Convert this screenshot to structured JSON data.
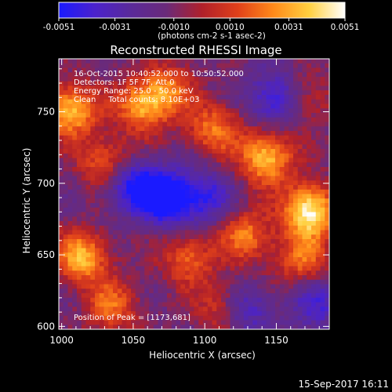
{
  "chart_data": {
    "type": "heatmap",
    "title": "Reconstructed RHESSI Image",
    "xlabel": "Heliocentric X (arcsec)",
    "ylabel": "Heliocentric Y (arcsec)",
    "xlim": [
      998,
      1187
    ],
    "ylim": [
      598,
      787
    ],
    "x_ticks": [
      1000,
      1050,
      1100,
      1150
    ],
    "y_ticks": [
      600,
      650,
      700,
      750
    ],
    "colorbar": {
      "range": [
        -0.0051,
        0.0051
      ],
      "tick_values": [
        -0.0051,
        -0.0031,
        -0.001,
        0.001,
        0.0031,
        0.0051
      ],
      "tick_labels": [
        "-0.0051",
        "-0.0031",
        "-0.0010",
        "0.0010",
        "0.0031",
        "0.0051"
      ],
      "unit_label": "(photons cm-2 s-1 asec-2)",
      "colors": [
        "#1a1aff",
        "#4b22cc",
        "#5a2a9a",
        "#6a2a7a",
        "#b0202a",
        "#e0401a",
        "#ff8a1a",
        "#ffd040",
        "#ffffff"
      ]
    },
    "annotations": [
      "16-Oct-2015 10:40:52.000 to 10:50:52.000",
      "Detectors: 1F 5F 7F, Att 0",
      "Energy Range: 25.0 - 50.0 keV",
      "Clean     Total counts: 8.10E+03",
      "Position of Peak = [1173,681]"
    ],
    "peak": [
      1173,
      681
    ],
    "sources": [
      {
        "x": 1173,
        "y": 681,
        "intensity": 1.0
      },
      {
        "x": 1143,
        "y": 718,
        "intensity": 0.8
      },
      {
        "x": 1006,
        "y": 751,
        "intensity": 0.8
      },
      {
        "x": 1056,
        "y": 754,
        "intensity": 0.65
      },
      {
        "x": 1014,
        "y": 648,
        "intensity": 0.75
      },
      {
        "x": 1106,
        "y": 738,
        "intensity": 0.55
      },
      {
        "x": 1088,
        "y": 648,
        "intensity": 0.5
      },
      {
        "x": 1129,
        "y": 663,
        "intensity": 0.55
      },
      {
        "x": 1035,
        "y": 614,
        "intensity": 0.5
      },
      {
        "x": 1074,
        "y": 765,
        "intensity": 0.5
      },
      {
        "x": 1113,
        "y": 614,
        "intensity": 0.45
      },
      {
        "x": 1168,
        "y": 647,
        "intensity": 0.5
      },
      {
        "x": 1031,
        "y": 714,
        "intensity": 0.55
      },
      {
        "x": 1170,
        "y": 760,
        "intensity": 0.35
      },
      {
        "x": 1072,
        "y": 690,
        "intensity": -0.9
      },
      {
        "x": 1047,
        "y": 700,
        "intensity": -0.6
      },
      {
        "x": 1100,
        "y": 690,
        "intensity": -0.5
      },
      {
        "x": 1150,
        "y": 760,
        "intensity": -0.6
      },
      {
        "x": 1128,
        "y": 612,
        "intensity": -0.5
      },
      {
        "x": 1178,
        "y": 615,
        "intensity": -0.4
      }
    ]
  },
  "footer": {
    "timestamp": "15-Sep-2017 16:11"
  }
}
